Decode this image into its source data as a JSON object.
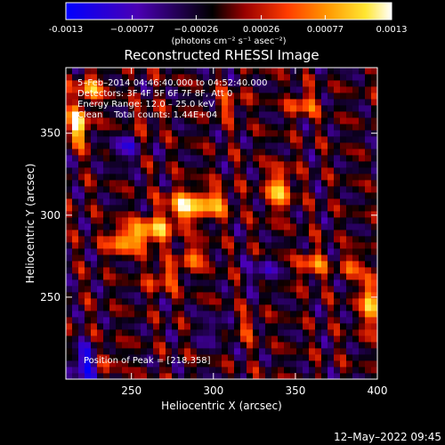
{
  "chart_data": {
    "type": "heatmap",
    "title": "Reconstructed RHESSI Image",
    "xlabel": "Heliocentric X (arcsec)",
    "ylabel": "Heliocentric Y (arcsec)",
    "xlim": [
      210,
      400
    ],
    "ylim": [
      200,
      390
    ],
    "x_ticks": [
      250,
      300,
      350,
      400
    ],
    "y_ticks": [
      250,
      300,
      350
    ],
    "colorbar": {
      "range": [
        -0.0013,
        0.0013
      ],
      "ticks": [
        -0.0013,
        -0.00077,
        -0.00026,
        0.00026,
        0.00077,
        0.0013
      ],
      "tick_labels": [
        "-0.0013",
        "−0.00077",
        "−0.00026",
        "0.00026",
        "0.00077",
        "0.0013"
      ],
      "unit_label": "(photons cm⁻² s⁻¹ asec⁻²)",
      "colormap": [
        "#0000ff",
        "#4b00b4",
        "#000000",
        "#9a0000",
        "#ff3c00",
        "#ff9600",
        "#ffe632",
        "#ffffff"
      ]
    },
    "annotations": [
      "5–Feb–2014 04:46:40.000 to 04:52:40.000",
      "Detectors: 3F 4F 5F 6F 7F 8F, Att 0",
      "Energy Range: 12.0 – 25.0 keV",
      "Clean    Total counts: 1.44E+04"
    ],
    "peak_label": "Position of Peak = [218,358]",
    "peak_position": [
      218,
      358
    ],
    "timestamp": "12–May–2022 09:45",
    "hotspots": [
      {
        "x": 217,
        "y": 355,
        "amp": 1.0,
        "sx": 5,
        "sy": 8
      },
      {
        "x": 225,
        "y": 378,
        "amp": 0.7,
        "sx": 6,
        "sy": 6
      },
      {
        "x": 245,
        "y": 285,
        "amp": 0.75,
        "sx": 7,
        "sy": 6
      },
      {
        "x": 262,
        "y": 290,
        "amp": 0.85,
        "sx": 8,
        "sy": 6
      },
      {
        "x": 282,
        "y": 305,
        "amp": 0.9,
        "sx": 8,
        "sy": 7
      },
      {
        "x": 300,
        "y": 308,
        "amp": 0.7,
        "sx": 7,
        "sy": 6
      },
      {
        "x": 270,
        "y": 262,
        "amp": 0.55,
        "sx": 7,
        "sy": 5
      },
      {
        "x": 288,
        "y": 275,
        "amp": 0.6,
        "sx": 6,
        "sy": 5
      },
      {
        "x": 340,
        "y": 316,
        "amp": 0.85,
        "sx": 5,
        "sy": 9
      },
      {
        "x": 360,
        "y": 270,
        "amp": 0.6,
        "sx": 6,
        "sy": 6
      },
      {
        "x": 396,
        "y": 248,
        "amp": 0.9,
        "sx": 4,
        "sy": 12
      },
      {
        "x": 385,
        "y": 270,
        "amp": 0.5,
        "sx": 5,
        "sy": 5
      },
      {
        "x": 235,
        "y": 212,
        "amp": 0.45,
        "sx": 6,
        "sy": 5
      },
      {
        "x": 320,
        "y": 232,
        "amp": 0.35,
        "sx": 6,
        "sy": 5
      },
      {
        "x": 355,
        "y": 368,
        "amp": 0.6,
        "sx": 6,
        "sy": 5
      },
      {
        "x": 310,
        "y": 368,
        "amp": 0.45,
        "sx": 6,
        "sy": 5
      },
      {
        "x": 260,
        "y": 360,
        "amp": 0.3,
        "sx": 6,
        "sy": 5
      }
    ],
    "coldspots": [
      {
        "x": 222,
        "y": 210,
        "amp": -0.75,
        "sx": 7,
        "sy": 7
      },
      {
        "x": 245,
        "y": 340,
        "amp": -0.5,
        "sx": 6,
        "sy": 6
      },
      {
        "x": 330,
        "y": 265,
        "amp": -0.45,
        "sx": 6,
        "sy": 6
      },
      {
        "x": 300,
        "y": 230,
        "amp": -0.4,
        "sx": 6,
        "sy": 6
      }
    ]
  }
}
